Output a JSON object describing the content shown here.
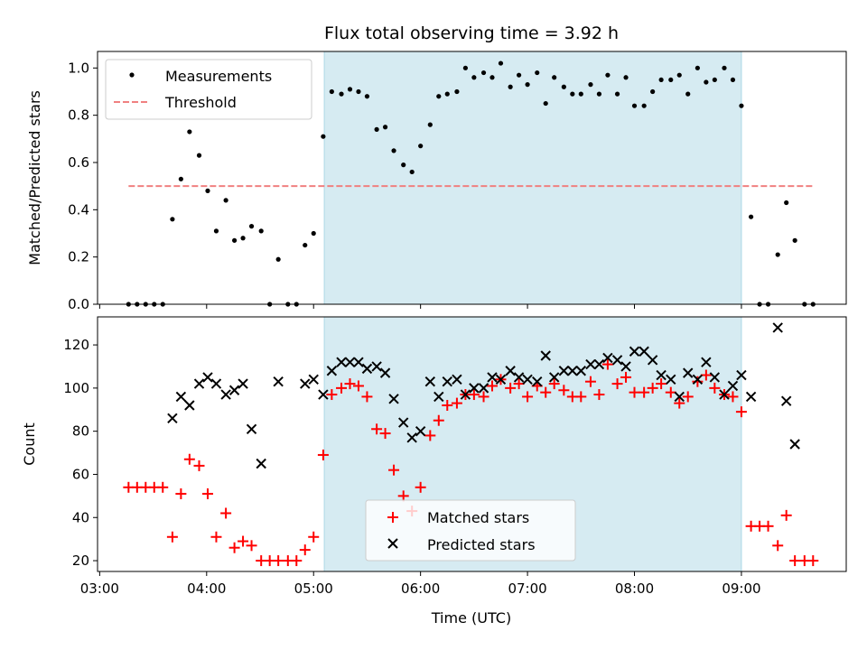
{
  "figure": {
    "title": "Flux total observing time = 3.92 h",
    "xlabel": "Time (UTC)",
    "x_ticks": [
      "03:00",
      "04:00",
      "05:00",
      "06:00",
      "07:00",
      "08:00",
      "09:00"
    ]
  },
  "chart_data": [
    {
      "type": "scatter",
      "ylabel": "Matched/Predicted stars",
      "x_unit": "hours UTC",
      "xlim": [
        2.98,
        9.98
      ],
      "ylim": [
        0,
        1.07
      ],
      "y_ticks": [
        0.0,
        0.2,
        0.4,
        0.6,
        0.8,
        1.0
      ],
      "y_tick_labels": [
        "0.0",
        "0.2",
        "0.4",
        "0.6",
        "0.8",
        "1.0"
      ],
      "shaded_interval": {
        "start": 5.1,
        "end": 9.0,
        "color": "#add8e6"
      },
      "legend": {
        "placement": "upper-left",
        "measurements_label": "Measurements",
        "threshold_label": "Threshold"
      },
      "threshold": {
        "value": 0.5,
        "x_start": 3.27,
        "x_end": 9.67,
        "color": "#f08080"
      },
      "series": [
        {
          "name": "Measurements",
          "color": "#000000",
          "x": [
            3.27,
            3.35,
            3.43,
            3.51,
            3.59,
            3.68,
            3.76,
            3.84,
            3.93,
            4.01,
            4.09,
            4.18,
            4.26,
            4.34,
            4.42,
            4.51,
            4.59,
            4.67,
            4.76,
            4.84,
            4.92,
            5.0,
            5.09,
            5.17,
            5.26,
            5.34,
            5.42,
            5.5,
            5.59,
            5.67,
            5.75,
            5.84,
            5.92,
            6.0,
            6.09,
            6.17,
            6.25,
            6.34,
            6.42,
            6.5,
            6.59,
            6.67,
            6.75,
            6.84,
            6.92,
            7.0,
            7.09,
            7.17,
            7.25,
            7.34,
            7.42,
            7.5,
            7.59,
            7.67,
            7.75,
            7.84,
            7.92,
            8.0,
            8.09,
            8.17,
            8.25,
            8.34,
            8.42,
            8.5,
            8.59,
            8.67,
            8.75,
            8.84,
            8.92,
            9.0,
            9.09,
            9.17,
            9.25,
            9.34,
            9.42,
            9.5,
            9.59,
            9.67
          ],
          "y": [
            0.0,
            0.0,
            0.0,
            0.0,
            0.0,
            0.36,
            0.53,
            0.73,
            0.63,
            0.48,
            0.31,
            0.44,
            0.27,
            0.28,
            0.33,
            0.31,
            0.0,
            0.19,
            0.0,
            0.0,
            0.25,
            0.3,
            0.71,
            0.9,
            0.89,
            0.91,
            0.9,
            0.88,
            0.74,
            0.75,
            0.65,
            0.59,
            0.56,
            0.67,
            0.76,
            0.88,
            0.89,
            0.9,
            1.0,
            0.96,
            0.98,
            0.96,
            1.02,
            0.92,
            0.97,
            0.93,
            0.98,
            0.85,
            0.96,
            0.92,
            0.89,
            0.89,
            0.93,
            0.89,
            0.97,
            0.89,
            0.96,
            0.84,
            0.84,
            0.9,
            0.95,
            0.95,
            0.97,
            0.89,
            1.0,
            0.94,
            0.95,
            1.0,
            0.95,
            0.84,
            0.37,
            0.0,
            0.0,
            0.21,
            0.43,
            0.27,
            0.0,
            0.0
          ]
        }
      ]
    },
    {
      "type": "scatter",
      "ylabel": "Count",
      "x_unit": "hours UTC",
      "xlim": [
        2.98,
        9.98
      ],
      "ylim": [
        15,
        133
      ],
      "y_ticks": [
        20,
        40,
        60,
        80,
        100,
        120
      ],
      "y_tick_labels": [
        "20",
        "40",
        "60",
        "80",
        "100",
        "120"
      ],
      "shaded_interval": {
        "start": 5.1,
        "end": 9.0,
        "color": "#add8e6"
      },
      "legend": {
        "placement": "lower-center",
        "matched_label": "Matched stars",
        "predicted_label": "Predicted stars"
      },
      "series": [
        {
          "name": "Matched stars",
          "marker": "plus",
          "color": "#ff0000",
          "x": [
            3.27,
            3.35,
            3.43,
            3.51,
            3.59,
            3.68,
            3.76,
            3.84,
            3.93,
            4.01,
            4.09,
            4.18,
            4.26,
            4.34,
            4.42,
            4.51,
            4.59,
            4.67,
            4.76,
            4.84,
            4.92,
            5.0,
            5.09,
            5.17,
            5.26,
            5.34,
            5.42,
            5.5,
            5.59,
            5.67,
            5.75,
            5.84,
            5.92,
            6.0,
            6.09,
            6.17,
            6.25,
            6.34,
            6.42,
            6.5,
            6.59,
            6.67,
            6.75,
            6.84,
            6.92,
            7.0,
            7.09,
            7.17,
            7.25,
            7.34,
            7.42,
            7.5,
            7.59,
            7.67,
            7.75,
            7.84,
            7.92,
            8.0,
            8.09,
            8.17,
            8.25,
            8.34,
            8.42,
            8.5,
            8.59,
            8.67,
            8.75,
            8.84,
            8.92,
            9.0,
            9.09,
            9.17,
            9.25,
            9.34,
            9.42,
            9.5,
            9.59,
            9.67
          ],
          "y": [
            54,
            54,
            54,
            54,
            54,
            31,
            51,
            67,
            64,
            51,
            31,
            42,
            26,
            29,
            27,
            20,
            20,
            20,
            20,
            20,
            25,
            31,
            69,
            97,
            100,
            102,
            101,
            96,
            81,
            79,
            62,
            50,
            43,
            54,
            78,
            85,
            92,
            93,
            97,
            97,
            96,
            101,
            104,
            100,
            102,
            96,
            101,
            98,
            102,
            99,
            96,
            96,
            103,
            97,
            111,
            102,
            105,
            98,
            98,
            100,
            102,
            98,
            93,
            96,
            103,
            106,
            100,
            97,
            96,
            89,
            36,
            36,
            36,
            27,
            41,
            20,
            20,
            20
          ]
        },
        {
          "name": "Predicted stars",
          "marker": "x",
          "color": "#000000",
          "x": [
            3.68,
            3.76,
            3.84,
            3.93,
            4.01,
            4.09,
            4.18,
            4.26,
            4.34,
            4.42,
            4.51,
            4.67,
            4.92,
            5.0,
            5.09,
            5.17,
            5.26,
            5.34,
            5.42,
            5.5,
            5.59,
            5.67,
            5.75,
            5.84,
            5.92,
            6.0,
            6.09,
            6.17,
            6.25,
            6.34,
            6.42,
            6.5,
            6.59,
            6.67,
            6.75,
            6.84,
            6.92,
            7.0,
            7.09,
            7.17,
            7.25,
            7.34,
            7.42,
            7.5,
            7.59,
            7.67,
            7.75,
            7.84,
            7.92,
            8.0,
            8.09,
            8.17,
            8.25,
            8.34,
            8.42,
            8.5,
            8.59,
            8.67,
            8.75,
            8.84,
            8.92,
            9.0,
            9.09,
            9.34,
            9.42,
            9.5
          ],
          "y": [
            86,
            96,
            92,
            102,
            105,
            102,
            97,
            99,
            102,
            81,
            65,
            103,
            102,
            104,
            97,
            108,
            112,
            112,
            112,
            109,
            110,
            107,
            95,
            84,
            77,
            80,
            103,
            96,
            103,
            104,
            97,
            100,
            100,
            105,
            104,
            108,
            105,
            104,
            103,
            115,
            105,
            108,
            108,
            108,
            111,
            111,
            114,
            113,
            110,
            117,
            117,
            113,
            106,
            104,
            96,
            107,
            104,
            112,
            105,
            97,
            101,
            106,
            96,
            128,
            94,
            74
          ]
        }
      ]
    }
  ]
}
